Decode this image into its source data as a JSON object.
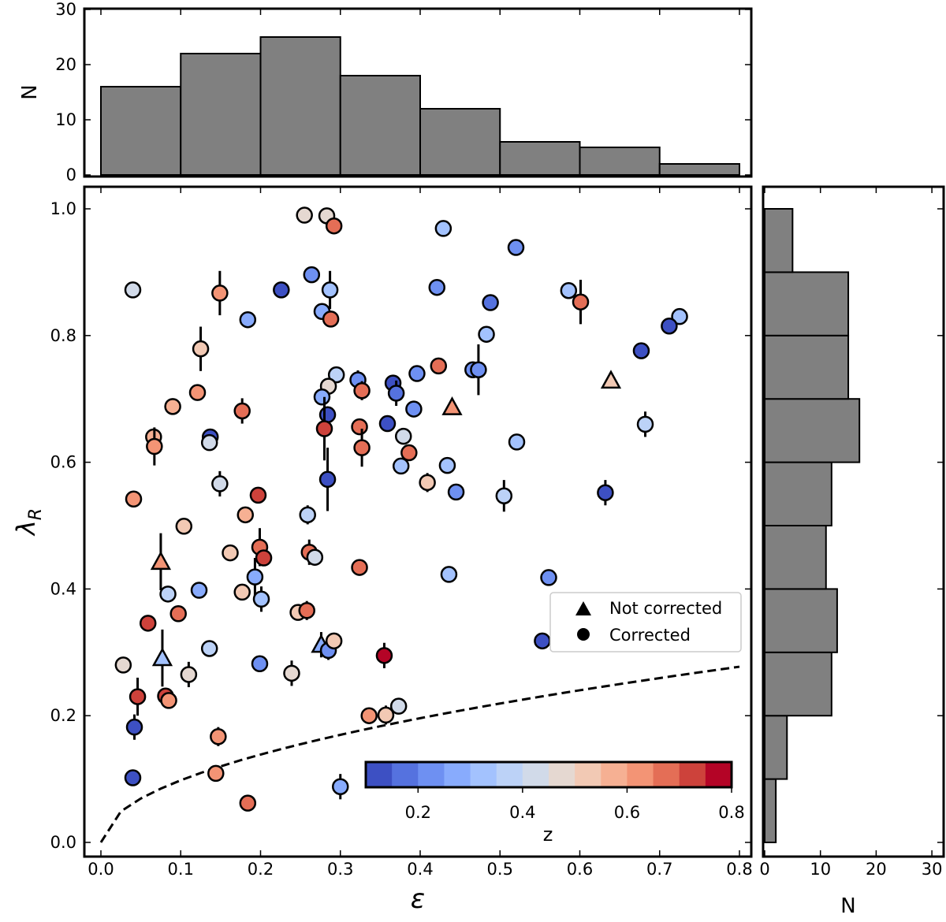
{
  "chart_data": {
    "type": "scatter",
    "xlabel": "ε",
    "ylabel": "λ",
    "ylabel_sub": "R",
    "xlim": [
      -0.025,
      0.815
    ],
    "ylim": [
      -0.02,
      1.04
    ],
    "xticks": [
      "0.0",
      "0.1",
      "0.2",
      "0.3",
      "0.4",
      "0.5",
      "0.6",
      "0.7",
      "0.8"
    ],
    "yticks": [
      "0.0",
      "0.2",
      "0.4",
      "0.6",
      "0.8",
      "1.0"
    ],
    "grid": false,
    "colorbar": {
      "label": "z",
      "range": [
        0.1,
        0.8
      ],
      "ticks": [
        "0.2",
        "0.4",
        "0.6",
        "0.8"
      ],
      "colormap": "coolwarm",
      "bin_colors": [
        "#3d50c3",
        "#5572df",
        "#6e90f2",
        "#88abfd",
        "#a3c2fe",
        "#bcd2f7",
        "#d1dae9",
        "#e5d8d1",
        "#f2c9b4",
        "#f6b093",
        "#f39475",
        "#e46e56",
        "#cd423b",
        "#b40426"
      ]
    },
    "legend": {
      "placement": "center-right",
      "entries": [
        {
          "marker": "triangle",
          "label": "Not corrected"
        },
        {
          "marker": "circle",
          "label": "Corrected"
        }
      ]
    },
    "guide_curve": {
      "style": "dashed",
      "k": 0.31
    },
    "point_fields": [
      "epsilon",
      "lambda_R",
      "z",
      "error",
      "marker"
    ],
    "points": [
      [
        0.255,
        0.99,
        0.47,
        0,
        "o"
      ],
      [
        0.283,
        0.989,
        0.47,
        0,
        "o"
      ],
      [
        0.292,
        0.973,
        0.68,
        0.012,
        "o"
      ],
      [
        0.264,
        0.896,
        0.22,
        0,
        "o"
      ],
      [
        0.287,
        0.872,
        0.32,
        0.03,
        "o"
      ],
      [
        0.226,
        0.872,
        0.12,
        0.01,
        "o"
      ],
      [
        0.04,
        0.872,
        0.42,
        0,
        "o"
      ],
      [
        0.149,
        0.867,
        0.62,
        0.035,
        "o"
      ],
      [
        0.277,
        0.838,
        0.27,
        0,
        "o"
      ],
      [
        0.288,
        0.826,
        0.67,
        0,
        "o"
      ],
      [
        0.184,
        0.825,
        0.27,
        0,
        "o"
      ],
      [
        0.125,
        0.779,
        0.52,
        0.035,
        "o"
      ],
      [
        0.295,
        0.738,
        0.37,
        0,
        "o"
      ],
      [
        0.322,
        0.73,
        0.22,
        0.015,
        "o"
      ],
      [
        0.396,
        0.74,
        0.22,
        0.01,
        "o"
      ],
      [
        0.366,
        0.725,
        0.12,
        0,
        "o"
      ],
      [
        0.37,
        0.709,
        0.17,
        0.02,
        "o"
      ],
      [
        0.285,
        0.72,
        0.47,
        0,
        "o"
      ],
      [
        0.327,
        0.713,
        0.67,
        0.015,
        "o"
      ],
      [
        0.277,
        0.703,
        0.27,
        0,
        "o"
      ],
      [
        0.121,
        0.71,
        0.62,
        0,
        "o"
      ],
      [
        0.09,
        0.688,
        0.57,
        0,
        "o"
      ],
      [
        0.177,
        0.681,
        0.67,
        0.02,
        "o"
      ],
      [
        0.392,
        0.684,
        0.22,
        0,
        "o"
      ],
      [
        0.284,
        0.675,
        0.12,
        0,
        "o"
      ],
      [
        0.359,
        0.661,
        0.12,
        0.01,
        "o"
      ],
      [
        0.28,
        0.653,
        0.72,
        0.05,
        "o"
      ],
      [
        0.324,
        0.656,
        0.67,
        0,
        "o"
      ],
      [
        0.379,
        0.641,
        0.42,
        0,
        "o"
      ],
      [
        0.327,
        0.623,
        0.67,
        0.03,
        "o"
      ],
      [
        0.386,
        0.615,
        0.67,
        0,
        "o"
      ],
      [
        0.376,
        0.594,
        0.32,
        0,
        "o"
      ],
      [
        0.066,
        0.64,
        0.57,
        0,
        "o"
      ],
      [
        0.067,
        0.625,
        0.62,
        0.03,
        "o"
      ],
      [
        0.137,
        0.64,
        0.12,
        0,
        "o"
      ],
      [
        0.136,
        0.631,
        0.42,
        0,
        "o"
      ],
      [
        0.284,
        0.573,
        0.12,
        0.05,
        "o"
      ],
      [
        0.149,
        0.566,
        0.42,
        0.02,
        "o"
      ],
      [
        0.197,
        0.548,
        0.72,
        0,
        "o"
      ],
      [
        0.041,
        0.542,
        0.62,
        0,
        "o"
      ],
      [
        0.181,
        0.517,
        0.57,
        0,
        "o"
      ],
      [
        0.259,
        0.517,
        0.37,
        0.015,
        "o"
      ],
      [
        0.429,
        0.969,
        0.32,
        0,
        "o"
      ],
      [
        0.52,
        0.939,
        0.22,
        0,
        "o"
      ],
      [
        0.421,
        0.876,
        0.22,
        0,
        "o"
      ],
      [
        0.488,
        0.852,
        0.17,
        0,
        "o"
      ],
      [
        0.586,
        0.871,
        0.32,
        0,
        "o"
      ],
      [
        0.601,
        0.853,
        0.67,
        0.035,
        "o"
      ],
      [
        0.725,
        0.83,
        0.32,
        0,
        "o"
      ],
      [
        0.712,
        0.815,
        0.12,
        0,
        "o"
      ],
      [
        0.483,
        0.802,
        0.32,
        0,
        "o"
      ],
      [
        0.677,
        0.776,
        0.12,
        0,
        "o"
      ],
      [
        0.423,
        0.752,
        0.67,
        0,
        "o"
      ],
      [
        0.466,
        0.746,
        0.22,
        0,
        "o"
      ],
      [
        0.473,
        0.746,
        0.22,
        0.04,
        "o"
      ],
      [
        0.639,
        0.729,
        0.52,
        0,
        "^"
      ],
      [
        0.44,
        0.687,
        0.62,
        0,
        "^"
      ],
      [
        0.682,
        0.66,
        0.37,
        0.02,
        "o"
      ],
      [
        0.521,
        0.632,
        0.32,
        0,
        "o"
      ],
      [
        0.434,
        0.595,
        0.32,
        0,
        "o"
      ],
      [
        0.409,
        0.568,
        0.52,
        0.015,
        "o"
      ],
      [
        0.445,
        0.553,
        0.22,
        0,
        "o"
      ],
      [
        0.505,
        0.547,
        0.37,
        0.025,
        "o"
      ],
      [
        0.632,
        0.552,
        0.12,
        0.02,
        "o"
      ],
      [
        0.104,
        0.499,
        0.52,
        0,
        "o"
      ],
      [
        0.075,
        0.443,
        0.62,
        0.045,
        "^"
      ],
      [
        0.162,
        0.457,
        0.52,
        0,
        "o"
      ],
      [
        0.199,
        0.466,
        0.67,
        0.03,
        "o"
      ],
      [
        0.204,
        0.449,
        0.72,
        0.01,
        "o"
      ],
      [
        0.261,
        0.458,
        0.67,
        0.02,
        "o"
      ],
      [
        0.268,
        0.45,
        0.42,
        0,
        "o"
      ],
      [
        0.324,
        0.434,
        0.67,
        0,
        "o"
      ],
      [
        0.193,
        0.419,
        0.27,
        0.03,
        "o"
      ],
      [
        0.201,
        0.384,
        0.32,
        0.02,
        "o"
      ],
      [
        0.177,
        0.395,
        0.52,
        0,
        "o"
      ],
      [
        0.123,
        0.398,
        0.27,
        0,
        "o"
      ],
      [
        0.084,
        0.392,
        0.37,
        0,
        "o"
      ],
      [
        0.097,
        0.361,
        0.67,
        0,
        "o"
      ],
      [
        0.059,
        0.346,
        0.72,
        0,
        "o"
      ],
      [
        0.247,
        0.363,
        0.52,
        0,
        "o"
      ],
      [
        0.258,
        0.366,
        0.67,
        0.015,
        "o"
      ],
      [
        0.276,
        0.312,
        0.27,
        0.02,
        "^"
      ],
      [
        0.285,
        0.303,
        0.22,
        0.015,
        "o"
      ],
      [
        0.292,
        0.318,
        0.52,
        0,
        "o"
      ],
      [
        0.355,
        0.295,
        0.78,
        0.02,
        "o"
      ],
      [
        0.136,
        0.306,
        0.37,
        0,
        "o"
      ],
      [
        0.077,
        0.291,
        0.32,
        0.045,
        "^"
      ],
      [
        0.028,
        0.28,
        0.47,
        0,
        "o"
      ],
      [
        0.11,
        0.265,
        0.47,
        0.02,
        "o"
      ],
      [
        0.199,
        0.282,
        0.22,
        0,
        "o"
      ],
      [
        0.239,
        0.267,
        0.47,
        0.02,
        "o"
      ],
      [
        0.046,
        0.23,
        0.72,
        0.03,
        "o"
      ],
      [
        0.081,
        0.231,
        0.72,
        0,
        "o"
      ],
      [
        0.085,
        0.224,
        0.62,
        0,
        "o"
      ],
      [
        0.042,
        0.182,
        0.12,
        0.02,
        "o"
      ],
      [
        0.147,
        0.167,
        0.62,
        0.015,
        "o"
      ],
      [
        0.336,
        0.2,
        0.62,
        0,
        "o"
      ],
      [
        0.357,
        0.201,
        0.52,
        0.015,
        "o"
      ],
      [
        0.373,
        0.215,
        0.42,
        0,
        "o"
      ],
      [
        0.04,
        0.102,
        0.12,
        0.005,
        "o"
      ],
      [
        0.144,
        0.109,
        0.62,
        0,
        "o"
      ],
      [
        0.184,
        0.062,
        0.67,
        0,
        "o"
      ],
      [
        0.3,
        0.088,
        0.27,
        0.02,
        "o"
      ],
      [
        0.436,
        0.423,
        0.32,
        0,
        "o"
      ],
      [
        0.561,
        0.418,
        0.22,
        0.012,
        "o"
      ],
      [
        0.553,
        0.318,
        0.12,
        0,
        "o"
      ]
    ],
    "histogram_top": {
      "type": "bar",
      "ylabel": "N",
      "yticks": [
        "0",
        "10",
        "20",
        "30"
      ],
      "ylim": [
        0,
        30
      ],
      "bin_edges": [
        0.0,
        0.1,
        0.2,
        0.3,
        0.4,
        0.5,
        0.6,
        0.7,
        0.8
      ],
      "counts": [
        16,
        22,
        25,
        18,
        12,
        6,
        5,
        2
      ],
      "color": "#808080"
    },
    "histogram_right": {
      "type": "bar",
      "orientation": "horizontal",
      "xlabel": "N",
      "xticks": [
        "0",
        "10",
        "20",
        "30"
      ],
      "xlim": [
        0,
        30
      ],
      "bin_edges": [
        0.0,
        0.1,
        0.2,
        0.3,
        0.4,
        0.5,
        0.6,
        0.7,
        0.8,
        0.9,
        1.0
      ],
      "counts": [
        2,
        4,
        12,
        13,
        11,
        12,
        17,
        15,
        15,
        5
      ],
      "color": "#808080"
    }
  }
}
